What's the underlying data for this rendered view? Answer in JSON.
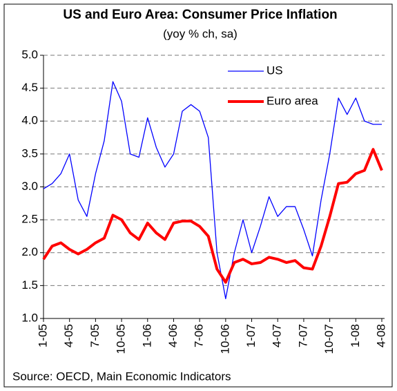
{
  "chart_data": {
    "type": "line",
    "title": "US and Euro Area: Consumer Price Inflation",
    "subtitle": "(yoy % ch, sa)",
    "source": "Source: OECD, Main Economic Indicators",
    "categories": [
      "1-05",
      null,
      null,
      "4-05",
      null,
      null,
      "7-05",
      null,
      null,
      "10-05",
      null,
      null,
      "1-06",
      null,
      null,
      "4-06",
      null,
      null,
      "7-06",
      null,
      null,
      "10-06",
      null,
      null,
      "1-07",
      null,
      null,
      "4-07",
      null,
      null,
      "7-07",
      null,
      null,
      "10-07",
      null,
      null,
      "1-08",
      null,
      null,
      "4-08"
    ],
    "series": [
      {
        "name": "US",
        "color": "#0000ff",
        "width": 1.3,
        "values": [
          2.97,
          3.05,
          3.2,
          3.5,
          2.8,
          2.55,
          3.2,
          3.7,
          4.6,
          4.3,
          3.5,
          3.45,
          4.05,
          3.6,
          3.3,
          3.5,
          4.15,
          4.25,
          4.15,
          3.75,
          2.0,
          1.3,
          2.0,
          2.5,
          2.0,
          2.4,
          2.85,
          2.55,
          2.7,
          2.7,
          2.35,
          1.95,
          2.8,
          3.5,
          4.35,
          4.1,
          4.35,
          4.0,
          3.95,
          3.95
        ]
      },
      {
        "name": "Euro area",
        "color": "#ff0000",
        "width": 4,
        "values": [
          1.9,
          2.1,
          2.15,
          2.05,
          1.98,
          2.05,
          2.15,
          2.22,
          2.57,
          2.5,
          2.3,
          2.2,
          2.45,
          2.3,
          2.2,
          2.45,
          2.48,
          2.48,
          2.4,
          2.25,
          1.75,
          1.55,
          1.85,
          1.9,
          1.83,
          1.85,
          1.93,
          1.9,
          1.85,
          1.88,
          1.77,
          1.75,
          2.1,
          2.55,
          3.05,
          3.07,
          3.2,
          3.25,
          3.57,
          3.25
        ]
      }
    ],
    "ylim": [
      1,
      5
    ],
    "yticks": [
      {
        "value": 1,
        "label": "1.0"
      },
      1.5,
      {
        "value": 2,
        "label": "2.0"
      },
      2.5,
      {
        "value": 3,
        "label": "3.0"
      },
      3.5,
      {
        "value": 4,
        "label": "4.0"
      },
      4.5,
      {
        "value": 5,
        "label": "5.0"
      }
    ],
    "grid": true,
    "legend": "upper right"
  }
}
